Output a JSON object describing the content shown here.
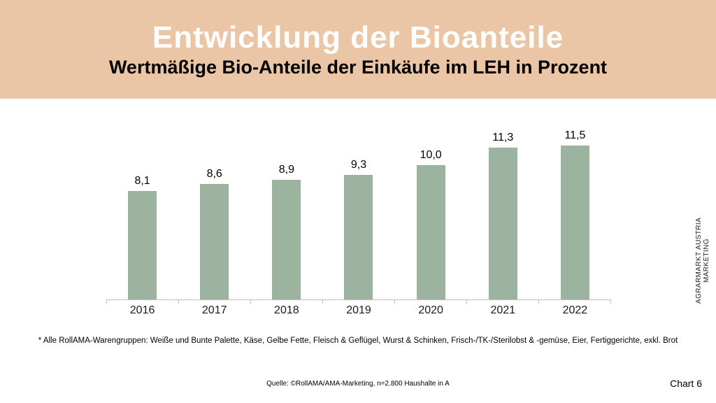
{
  "header": {
    "title": "Entwicklung der Bioanteile",
    "subtitle": "Wertmäßige Bio-Anteile der Einkäufe im LEH in Prozent",
    "background_color": "#ebc6a6",
    "title_color": "#ffffff",
    "subtitle_color": "#000000"
  },
  "chart_data": {
    "type": "bar",
    "categories": [
      "2016",
      "2017",
      "2018",
      "2019",
      "2020",
      "2021",
      "2022"
    ],
    "values": [
      8.1,
      8.6,
      8.9,
      9.3,
      10.0,
      11.3,
      11.5
    ],
    "value_labels": [
      "8,1",
      "8,6",
      "8,9",
      "9,3",
      "10,0",
      "11,3",
      "11,5"
    ],
    "title": "Wertmäßige Bio-Anteile der Einkäufe im LEH in Prozent",
    "xlabel": "",
    "ylabel": "",
    "ylim": [
      0,
      12
    ],
    "grid": false,
    "legend": false,
    "bar_color": "#9cb3a0",
    "axis_color": "#bfbfbf"
  },
  "annotations": {
    "side_label": "AGRARMARKT AUSTRIA MARKETING",
    "footnote": "* Alle RollAMA-Warengruppen: Weiße und Bunte Palette, Käse, Gelbe Fette, Fleisch & Geflügel, Wurst & Schinken, Frisch-/TK-/Sterilobst & -gemüse,  Eier,  Fertiggerichte, exkl. Brot",
    "source": "Quelle: ©RollAMA/AMA-Marketing, n=2.800 Haushalte in A",
    "page_label": "Chart 6"
  }
}
